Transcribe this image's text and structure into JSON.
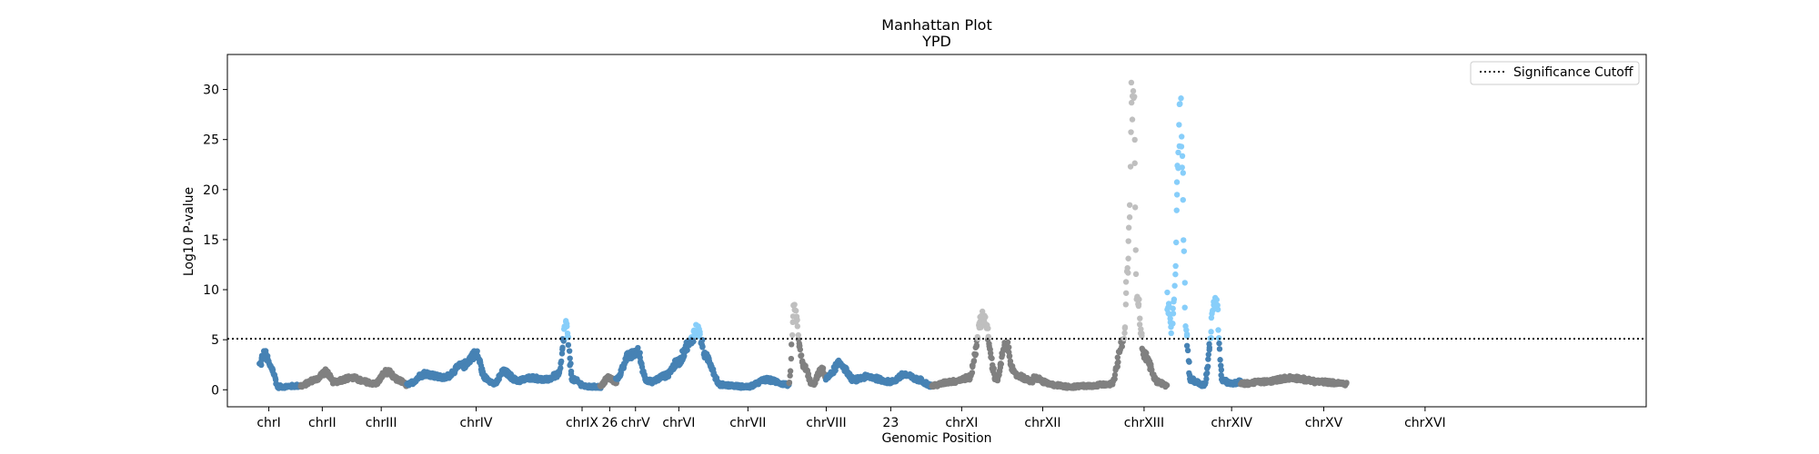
{
  "chart_data": {
    "type": "scatter",
    "title": "Manhattan Plot",
    "subtitle": "YPD",
    "xlabel": "Genomic Position",
    "ylabel": "Log10 P-value",
    "ylim": [
      -1.7,
      33.5
    ],
    "yticks": [
      0,
      5,
      10,
      15,
      20,
      25,
      30
    ],
    "grid": false,
    "legend_position": "top-right",
    "significance_cutoff": 5.1,
    "legend": {
      "entries": [
        {
          "label": "Significance Cutoff",
          "style": "dotted",
          "color": "#000000"
        }
      ]
    },
    "colors": {
      "odd": "#4682b4",
      "even": "#808080",
      "odd_significant": "#87cefa",
      "even_significant": "#bfbfbf"
    },
    "chromosomes": [
      {
        "label": "chrI",
        "start": 0.0,
        "end": 0.45,
        "color": "odd",
        "profile": [
          [
            0.0,
            2.5
          ],
          [
            0.05,
            3.6
          ],
          [
            0.13,
            2.2
          ],
          [
            0.2,
            0.3
          ],
          [
            0.45,
            0.4
          ]
        ]
      },
      {
        "label": "chrII",
        "start": 0.45,
        "end": 1.25,
        "color": "even",
        "profile": [
          [
            0.45,
            0.4
          ],
          [
            0.6,
            1.0
          ],
          [
            0.72,
            1.8
          ],
          [
            0.8,
            0.8
          ],
          [
            1.0,
            1.2
          ],
          [
            1.15,
            0.8
          ],
          [
            1.25,
            0.6
          ]
        ]
      },
      {
        "label": "chrIII",
        "start": 1.25,
        "end": 1.6,
        "color": "even",
        "profile": [
          [
            1.25,
            0.6
          ],
          [
            1.38,
            1.8
          ],
          [
            1.5,
            1.0
          ],
          [
            1.6,
            0.5
          ]
        ]
      },
      {
        "label": "chrIV",
        "start": 1.6,
        "end": 3.25,
        "color": "odd",
        "profile": [
          [
            1.6,
            0.5
          ],
          [
            1.8,
            1.6
          ],
          [
            2.0,
            1.2
          ],
          [
            2.2,
            2.4
          ],
          [
            2.35,
            3.6
          ],
          [
            2.45,
            1.2
          ],
          [
            2.55,
            0.6
          ],
          [
            2.65,
            1.8
          ],
          [
            2.8,
            0.9
          ],
          [
            2.95,
            1.2
          ],
          [
            3.1,
            1.0
          ],
          [
            3.25,
            1.5
          ]
        ]
      },
      {
        "label": "chrIX",
        "start": 3.25,
        "end": 3.7,
        "color": "odd",
        "profile": [
          [
            3.25,
            1.5
          ],
          [
            3.32,
            6.5
          ],
          [
            3.4,
            1.0
          ],
          [
            3.55,
            0.3
          ],
          [
            3.7,
            0.3
          ]
        ]
      },
      {
        "label": "26",
        "start": 3.7,
        "end": 3.87,
        "color": "even",
        "profile": [
          [
            3.7,
            0.3
          ],
          [
            3.78,
            1.2
          ],
          [
            3.87,
            0.8
          ]
        ]
      },
      {
        "label": "chrV",
        "start": 3.87,
        "end": 4.25,
        "color": "odd",
        "profile": [
          [
            3.87,
            1.0
          ],
          [
            4.0,
            3.3
          ],
          [
            4.1,
            3.8
          ],
          [
            4.2,
            1.0
          ],
          [
            4.25,
            0.8
          ]
        ]
      },
      {
        "label": "chrVI",
        "start": 4.25,
        "end": 4.65,
        "color": "odd",
        "profile": [
          [
            4.25,
            0.8
          ],
          [
            4.4,
            1.4
          ],
          [
            4.55,
            2.8
          ],
          [
            4.65,
            4.5
          ]
        ]
      },
      {
        "label": "chrVII",
        "start": 4.65,
        "end": 5.75,
        "color": "odd",
        "profile": [
          [
            4.65,
            4.5
          ],
          [
            4.75,
            6.0
          ],
          [
            4.85,
            3.2
          ],
          [
            5.0,
            0.5
          ],
          [
            5.3,
            0.3
          ],
          [
            5.5,
            1.0
          ],
          [
            5.75,
            0.5
          ]
        ]
      },
      {
        "label": "chrVIII",
        "start": 5.75,
        "end": 6.15,
        "color": "even",
        "profile": [
          [
            5.75,
            0.5
          ],
          [
            5.8,
            8.0
          ],
          [
            5.9,
            2.5
          ],
          [
            6.0,
            0.5
          ],
          [
            6.1,
            2.0
          ],
          [
            6.15,
            1.2
          ]
        ]
      },
      {
        "label": "23",
        "start": 6.15,
        "end": 6.85,
        "color": "odd",
        "profile": [
          [
            6.15,
            1.2
          ],
          [
            6.3,
            2.6
          ],
          [
            6.45,
            1.0
          ],
          [
            6.6,
            1.3
          ],
          [
            6.85,
            0.8
          ]
        ]
      },
      {
        "label": "chrXI",
        "start": 6.85,
        "end": 7.3,
        "color": "odd",
        "profile": [
          [
            6.85,
            0.8
          ],
          [
            7.0,
            1.5
          ],
          [
            7.15,
            1.0
          ],
          [
            7.3,
            0.4
          ]
        ]
      },
      {
        "label": "chrXII",
        "start": 7.3,
        "end": 8.4,
        "color": "even",
        "profile": [
          [
            7.3,
            0.4
          ],
          [
            7.5,
            0.8
          ],
          [
            7.7,
            1.2
          ],
          [
            7.85,
            7.4
          ],
          [
            8.0,
            1.0
          ],
          [
            8.1,
            4.5
          ],
          [
            8.2,
            1.5
          ],
          [
            8.4,
            0.8
          ]
        ]
      },
      {
        "label": "chrXIII",
        "start": 8.4,
        "end": 9.25,
        "color": "even",
        "profile": [
          [
            8.4,
            1.2
          ],
          [
            8.6,
            0.5
          ],
          [
            8.8,
            0.3
          ],
          [
            9.0,
            0.4
          ],
          [
            9.25,
            0.6
          ]
        ]
      },
      {
        "label": "chrXIV",
        "start": 9.25,
        "end": 9.85,
        "color": "even",
        "profile": [
          [
            9.25,
            0.6
          ],
          [
            9.38,
            5.0
          ],
          [
            9.42,
            12.0
          ],
          [
            9.48,
            31.0
          ],
          [
            9.52,
            10.0
          ],
          [
            9.6,
            3.5
          ],
          [
            9.75,
            0.8
          ],
          [
            9.85,
            0.4
          ]
        ]
      },
      {
        "label": "chrXV",
        "start": 9.85,
        "end": 10.65,
        "color": "odd",
        "profile": [
          [
            9.85,
            9.0
          ],
          [
            9.9,
            6.0
          ],
          [
            10.0,
            27.0
          ],
          [
            10.06,
            5.5
          ],
          [
            10.1,
            1.0
          ],
          [
            10.25,
            0.5
          ],
          [
            10.38,
            9.0
          ],
          [
            10.45,
            1.0
          ],
          [
            10.55,
            0.6
          ],
          [
            10.65,
            0.8
          ]
        ]
      },
      {
        "label": "chrXVI",
        "start": 10.65,
        "end": 11.8,
        "color": "even",
        "profile": [
          [
            10.65,
            0.6
          ],
          [
            10.9,
            0.8
          ],
          [
            11.2,
            1.2
          ],
          [
            11.5,
            0.8
          ],
          [
            11.8,
            0.6
          ]
        ]
      }
    ],
    "tick_labels": [
      {
        "label": "chrI",
        "at": 0.1
      },
      {
        "label": "chrII",
        "at": 0.68
      },
      {
        "label": "chrIII",
        "at": 1.32
      },
      {
        "label": "chrIV",
        "at": 2.35
      },
      {
        "label": "chrIX",
        "at": 3.5
      },
      {
        "label": "26",
        "at": 3.8
      },
      {
        "label": "chrV",
        "at": 4.08
      },
      {
        "label": "chrVI",
        "at": 4.55
      },
      {
        "label": "chrVII",
        "at": 5.3
      },
      {
        "label": "chrVIII",
        "at": 6.15
      },
      {
        "label": "23",
        "at": 6.85
      },
      {
        "label": "chrXI",
        "at": 7.62
      },
      {
        "label": "chrXII",
        "at": 8.5
      },
      {
        "label": "chrXIII",
        "at": 9.6
      },
      {
        "label": "chrXIV",
        "at": 10.55
      },
      {
        "label": "chrXV",
        "at": 11.55
      },
      {
        "label": "chrXVI",
        "at": 12.65
      }
    ]
  }
}
